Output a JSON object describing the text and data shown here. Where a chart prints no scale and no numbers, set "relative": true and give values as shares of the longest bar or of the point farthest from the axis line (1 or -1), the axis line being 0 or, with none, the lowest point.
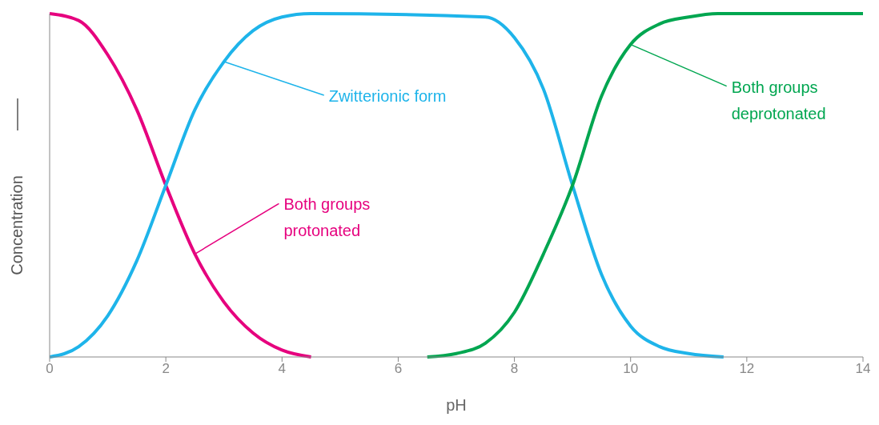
{
  "chart_data": {
    "type": "line",
    "xlabel": "pH",
    "ylabel": "Concentration",
    "relative": true,
    "xlim": [
      0,
      14
    ],
    "xticks": [
      0,
      2,
      4,
      6,
      8,
      10,
      12,
      14
    ],
    "marker": "none",
    "line_style": "solid",
    "series": [
      {
        "color": "#e6007e",
        "x": [
          0,
          0.5,
          1,
          1.5,
          2,
          2.5,
          3,
          3.5,
          4,
          4.5
        ],
        "values": [
          1,
          0.98,
          0.88,
          0.72,
          0.5,
          0.3,
          0.16,
          0.07,
          0.02,
          0
        ]
      },
      {
        "color": "#1eb4ea",
        "x": [
          0,
          0.5,
          1,
          1.5,
          2,
          2.5,
          3,
          3.5,
          4,
          4.5,
          7.5,
          8,
          8.5,
          9,
          9.5,
          10,
          10.5,
          11,
          11.6
        ],
        "values": [
          0,
          0.03,
          0.12,
          0.28,
          0.5,
          0.72,
          0.86,
          0.95,
          0.99,
          1,
          0.99,
          0.93,
          0.78,
          0.5,
          0.24,
          0.09,
          0.03,
          0.01,
          0
        ]
      },
      {
        "color": "#00a650",
        "x": [
          6.5,
          7,
          7.5,
          8,
          8.5,
          9,
          9.5,
          10,
          10.5,
          11,
          11.5,
          14
        ],
        "values": [
          0,
          0.01,
          0.04,
          0.13,
          0.3,
          0.5,
          0.76,
          0.91,
          0.97,
          0.99,
          1,
          1
        ]
      }
    ],
    "annotations": [
      {
        "text": "Both groups\nprotonated",
        "x": 2.5,
        "y": 0.3
      },
      {
        "text": "Zwitterionic form",
        "x": 3,
        "y": 0.86
      },
      {
        "text": "Both groups\ndeprotonated",
        "x": 10,
        "y": 0.91
      }
    ]
  }
}
